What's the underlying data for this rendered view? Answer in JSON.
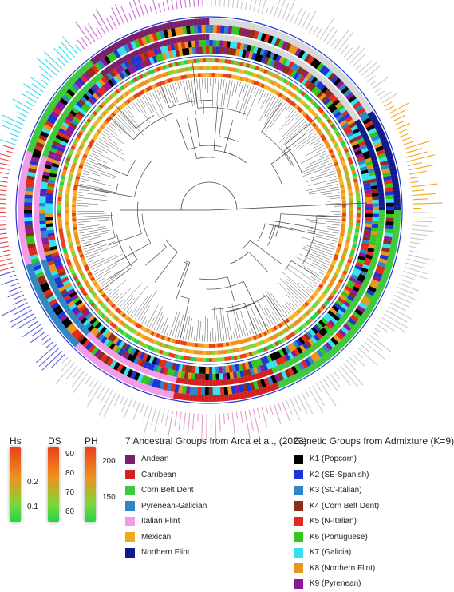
{
  "scales": [
    {
      "title": "Hs",
      "ticks": [
        "0.2",
        "0.1"
      ]
    },
    {
      "title": "DS",
      "ticks": [
        "90",
        "80",
        "70",
        "60"
      ]
    },
    {
      "title": "PH",
      "ticks": [
        "200",
        "150"
      ]
    }
  ],
  "ancestral_legend": {
    "title": "7 Ancestral Groups from Arca et al., (2023)",
    "items": [
      {
        "label": "Andean",
        "color": "#7b1f6b"
      },
      {
        "label": "Carribean",
        "color": "#d32121"
      },
      {
        "label": "Corn Belt Dent",
        "color": "#3ec93e"
      },
      {
        "label": "Pyrenean-Galician",
        "color": "#2f86c4"
      },
      {
        "label": "Italian Flint",
        "color": "#f39be8"
      },
      {
        "label": "Mexican",
        "color": "#f0a91a"
      },
      {
        "label": "Northern Flint",
        "color": "#101a8c"
      }
    ]
  },
  "admixture_legend": {
    "title": "Genetic Groups from Admixture (K=9)",
    "items": [
      {
        "label": "K1 (Popcorn)",
        "color": "#000000"
      },
      {
        "label": "K2 (SE-Spanish)",
        "color": "#1c35d4"
      },
      {
        "label": "K3 (SC-Italian)",
        "color": "#2f86c4"
      },
      {
        "label": "K4 (Corn Belt Dent)",
        "color": "#8c2d1e"
      },
      {
        "label": "K5 (N-Italian)",
        "color": "#e02a1a"
      },
      {
        "label": "K6 (Portuguese)",
        "color": "#34c61c"
      },
      {
        "label": "K7 (Galicia)",
        "color": "#38e1f0"
      },
      {
        "label": "K8 (Northern Flint)",
        "color": "#e8961c"
      },
      {
        "label": "K9 (Pyrenean)",
        "color": "#8a1a9a"
      }
    ]
  }
}
